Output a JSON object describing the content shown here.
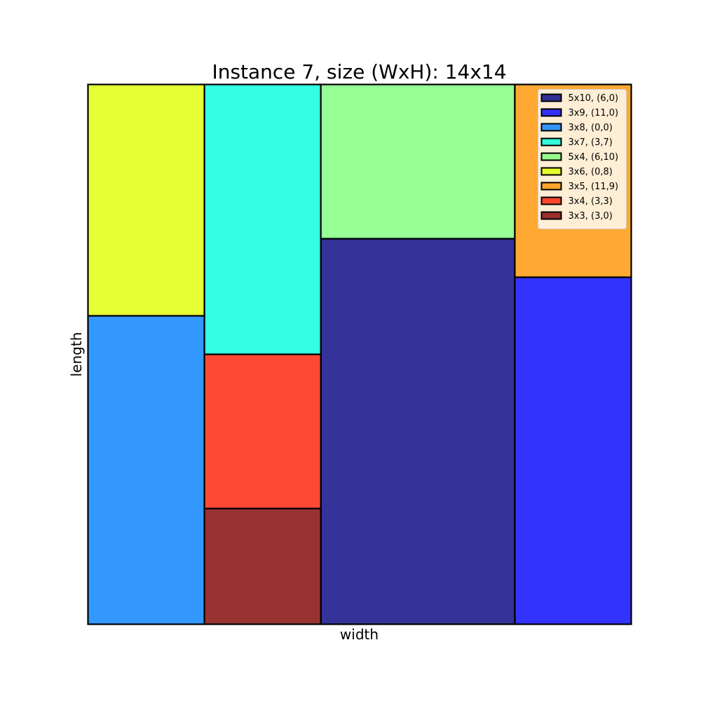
{
  "chart_data": {
    "type": "bar",
    "title": "Instance 7, size (WxH): 14x14",
    "xlabel": "width",
    "ylabel": "length",
    "xlim": [
      0,
      14
    ],
    "ylim": [
      0,
      14
    ],
    "grid": false,
    "legend_position": "top-right",
    "rectangles": [
      {
        "label": "5x10, (6,0)",
        "x": 6,
        "y": 0,
        "w": 5,
        "h": 10,
        "color": "#000080"
      },
      {
        "label": "3x9, (11,0)",
        "x": 11,
        "y": 0,
        "w": 3,
        "h": 9,
        "color": "#0000ff"
      },
      {
        "label": "3x8, (0,0)",
        "x": 0,
        "y": 0,
        "w": 3,
        "h": 8,
        "color": "#0080ff"
      },
      {
        "label": "3x7, (3,7)",
        "x": 3,
        "y": 7,
        "w": 3,
        "h": 7,
        "color": "#00ffdd"
      },
      {
        "label": "5x4, (6,10)",
        "x": 6,
        "y": 10,
        "w": 5,
        "h": 4,
        "color": "#7dff7a"
      },
      {
        "label": "3x6, (0,8)",
        "x": 0,
        "y": 8,
        "w": 3,
        "h": 6,
        "color": "#ddff00"
      },
      {
        "label": "3x5, (11,9)",
        "x": 11,
        "y": 9,
        "w": 3,
        "h": 5,
        "color": "#ff9400"
      },
      {
        "label": "3x4, (3,3)",
        "x": 3,
        "y": 3,
        "w": 3,
        "h": 4,
        "color": "#ff1d00"
      },
      {
        "label": "3x3, (3,0)",
        "x": 3,
        "y": 0,
        "w": 3,
        "h": 3,
        "color": "#800000"
      }
    ]
  }
}
